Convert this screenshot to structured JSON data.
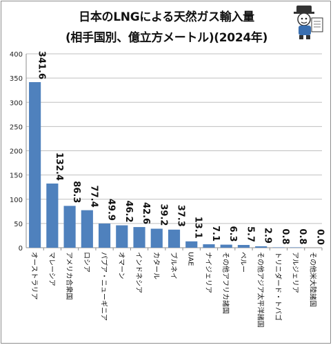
{
  "chart_data": {
    "type": "bar",
    "title": "日本のLNGによる天然ガス輸入量",
    "subtitle": "(相手国別、億立方メートル)(2024年)",
    "categories": [
      "オーストラリア",
      "マレーシア",
      "アメリカ合衆国",
      "ロシア",
      "パプア・ニューギニア",
      "オマーン",
      "インドネシア",
      "カタール",
      "ブルネイ",
      "UAE",
      "ナイジェリア",
      "その他アフリカ諸国",
      "ペルー",
      "その他アジア太平洋諸国",
      "トリニダード・トバゴ",
      "アルジェリア",
      "その他米大陸諸国"
    ],
    "value_labels": [
      "341.6",
      "132.4",
      "86.3",
      "77.4",
      "49.9",
      "46.2",
      "42.6",
      "39.2",
      "37.3",
      "13.1",
      "7.1",
      "6.3",
      "5.7",
      "2.9",
      "0.8",
      "0.8",
      "0.0"
    ],
    "values": [
      341.6,
      132.4,
      86.3,
      77.4,
      49.9,
      46.2,
      42.6,
      39.2,
      37.3,
      13.1,
      7.1,
      6.3,
      5.7,
      2.9,
      0.8,
      0.8,
      0.0
    ],
    "yticks": [
      "0",
      "50",
      "100",
      "150",
      "200",
      "250",
      "300",
      "350",
      "400"
    ],
    "ylim": [
      0,
      400
    ],
    "grid": true,
    "bar_color": "#4f81bd",
    "grid_color": "#bfbfbf"
  }
}
